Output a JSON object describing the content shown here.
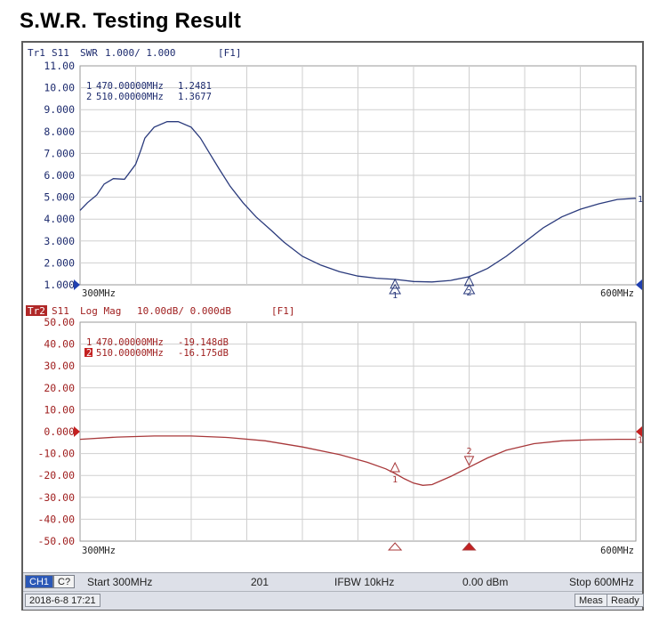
{
  "page": {
    "title": "S.W.R. Testing Result"
  },
  "chart_data": [
    {
      "type": "line",
      "trace": "Tr1",
      "header": {
        "trace": "Tr1",
        "param": "S11",
        "format": "SWR",
        "scale": "1.000/ 1.000",
        "flag": "[F1]"
      },
      "ylim": [
        1.0,
        11.0
      ],
      "yticks": [
        "11.00",
        "10.00",
        "9.000",
        "8.000",
        "7.000",
        "6.000",
        "5.000",
        "4.000",
        "3.000",
        "2.000",
        "1.000"
      ],
      "xlim": [
        300,
        600
      ],
      "x_start_label": "300MHz",
      "x_stop_label": "600MHz",
      "color": "#2a3a7c",
      "grid": true,
      "markers": [
        {
          "id": "1",
          "label": "1",
          "freq": 470,
          "text": "470.00000MHz",
          "value": "1.2481"
        },
        {
          "id": "2",
          "label": "2",
          "freq": 510,
          "text": "510.00000MHz",
          "value": "1.3677"
        }
      ],
      "series": [
        {
          "x": [
            300,
            304,
            309,
            313,
            318,
            324,
            330,
            333,
            335,
            340,
            347,
            353,
            360,
            365,
            370,
            375,
            381,
            388,
            395,
            403,
            410,
            420,
            430,
            440,
            450,
            460,
            470,
            480,
            490,
            500,
            510,
            520,
            530,
            540,
            550,
            560,
            570,
            580,
            590,
            600
          ],
          "y": [
            4.4,
            4.75,
            5.1,
            5.6,
            5.85,
            5.82,
            6.5,
            7.2,
            7.7,
            8.2,
            8.45,
            8.45,
            8.2,
            7.7,
            7.0,
            6.3,
            5.5,
            4.75,
            4.1,
            3.5,
            2.95,
            2.3,
            1.9,
            1.6,
            1.4,
            1.3,
            1.25,
            1.15,
            1.13,
            1.2,
            1.37,
            1.75,
            2.3,
            2.95,
            3.6,
            4.1,
            4.45,
            4.7,
            4.9,
            4.95
          ]
        }
      ]
    },
    {
      "type": "line",
      "trace": "Tr2",
      "header": {
        "trace": "Tr2",
        "param": "S11",
        "format": "Log Mag",
        "scale": "10.00dB/ 0.000dB",
        "flag": "[F1]"
      },
      "ylim": [
        -50,
        50
      ],
      "yticks": [
        "50.00",
        "40.00",
        "30.00",
        "20.00",
        "10.00",
        "0.000",
        "-10.00",
        "-20.00",
        "-30.00",
        "-40.00",
        "-50.00"
      ],
      "xlim": [
        300,
        600
      ],
      "x_start_label": "300MHz",
      "x_stop_label": "600MHz",
      "color": "#a8383a",
      "grid": true,
      "markers": [
        {
          "id": "1",
          "label": "1",
          "freq": 470,
          "text": "470.00000MHz",
          "value": "-19.148dB"
        },
        {
          "id": "2",
          "label": "2",
          "freq": 510,
          "text": "510.00000MHz",
          "value": "-16.175dB"
        }
      ],
      "series": [
        {
          "x": [
            300,
            320,
            340,
            360,
            380,
            400,
            420,
            440,
            455,
            465,
            470,
            475,
            480,
            485,
            490,
            500,
            510,
            520,
            530,
            545,
            560,
            575,
            590,
            600
          ],
          "y": [
            -3.5,
            -2.5,
            -2.0,
            -2.0,
            -2.7,
            -4.2,
            -7.0,
            -10.5,
            -14.0,
            -17.0,
            -19.1,
            -21.5,
            -23.5,
            -24.5,
            -24.2,
            -20.5,
            -16.2,
            -12.0,
            -8.5,
            -5.5,
            -4.2,
            -3.7,
            -3.5,
            -3.5
          ]
        }
      ]
    }
  ],
  "status": {
    "channel": "CH1",
    "channel2": "C?",
    "start": "Start 300MHz",
    "points": "201",
    "ifbw": "IFBW 10kHz",
    "power": "0.00 dBm",
    "stop": "Stop 600MHz",
    "datetime": "2018-6-8 17:21",
    "meas": "Meas",
    "ready": "Ready"
  }
}
